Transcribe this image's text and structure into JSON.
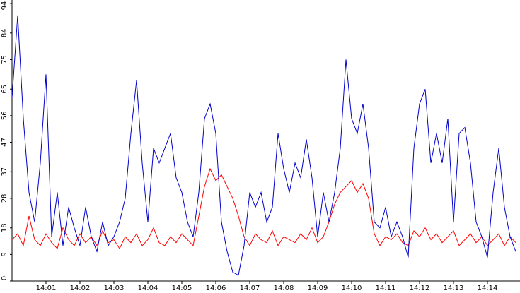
{
  "chart_data": {
    "type": "line",
    "categories": [
      null,
      null,
      null,
      null,
      null,
      null,
      "14:01",
      null,
      null,
      null,
      null,
      null,
      "14:02",
      null,
      null,
      null,
      null,
      null,
      "14:03",
      null,
      null,
      null,
      null,
      null,
      "14:04",
      null,
      null,
      null,
      null,
      null,
      "14:05",
      null,
      null,
      null,
      null,
      null,
      "14:06",
      null,
      null,
      null,
      null,
      null,
      "14:07",
      null,
      null,
      null,
      null,
      null,
      "14:08",
      null,
      null,
      null,
      null,
      null,
      "14:09",
      null,
      null,
      null,
      null,
      null,
      "14:10",
      null,
      null,
      null,
      null,
      null,
      "14:11",
      null,
      null,
      null,
      null,
      null,
      "14:12",
      null,
      null,
      null,
      null,
      null,
      "14:13",
      null,
      null,
      null,
      null,
      null,
      "14:14",
      null,
      null,
      null,
      null,
      null
    ],
    "series": [
      {
        "name": "blue",
        "color": "#0000cc",
        "values": [
          62,
          90,
          55,
          30,
          20,
          40,
          70,
          15,
          30,
          12,
          25,
          18,
          12,
          25,
          15,
          10,
          20,
          12,
          15,
          20,
          28,
          50,
          68,
          40,
          20,
          45,
          40,
          45,
          50,
          35,
          30,
          20,
          15,
          30,
          55,
          60,
          50,
          20,
          10,
          3,
          2,
          12,
          30,
          25,
          30,
          20,
          25,
          50,
          38,
          30,
          40,
          35,
          48,
          35,
          15,
          30,
          20,
          30,
          45,
          75,
          55,
          50,
          60,
          45,
          20,
          18,
          25,
          15,
          20,
          15,
          8,
          45,
          60,
          65,
          40,
          50,
          40,
          55,
          20,
          50,
          52,
          40,
          20,
          15,
          8,
          30,
          45,
          25,
          15,
          10
        ]
      },
      {
        "name": "red",
        "color": "#ff0000",
        "values": [
          14,
          16,
          12,
          22,
          14,
          12,
          16,
          13,
          11,
          18,
          14,
          12,
          16,
          13,
          15,
          12,
          17,
          13,
          14,
          11,
          15,
          13,
          16,
          12,
          14,
          18,
          13,
          12,
          15,
          13,
          16,
          14,
          12,
          22,
          32,
          38,
          34,
          36,
          32,
          28,
          22,
          15,
          12,
          16,
          14,
          13,
          17,
          12,
          15,
          14,
          13,
          16,
          14,
          18,
          13,
          15,
          20,
          26,
          30,
          32,
          34,
          30,
          33,
          28,
          16,
          12,
          15,
          14,
          16,
          13,
          12,
          17,
          15,
          18,
          14,
          16,
          13,
          15,
          17,
          12,
          14,
          16,
          13,
          15,
          12,
          14,
          16,
          12,
          15,
          13
        ]
      }
    ],
    "ylim": [
      0,
      94
    ],
    "yticks": [
      0,
      9,
      18,
      28,
      37,
      47,
      56,
      65,
      75,
      84,
      94
    ]
  }
}
